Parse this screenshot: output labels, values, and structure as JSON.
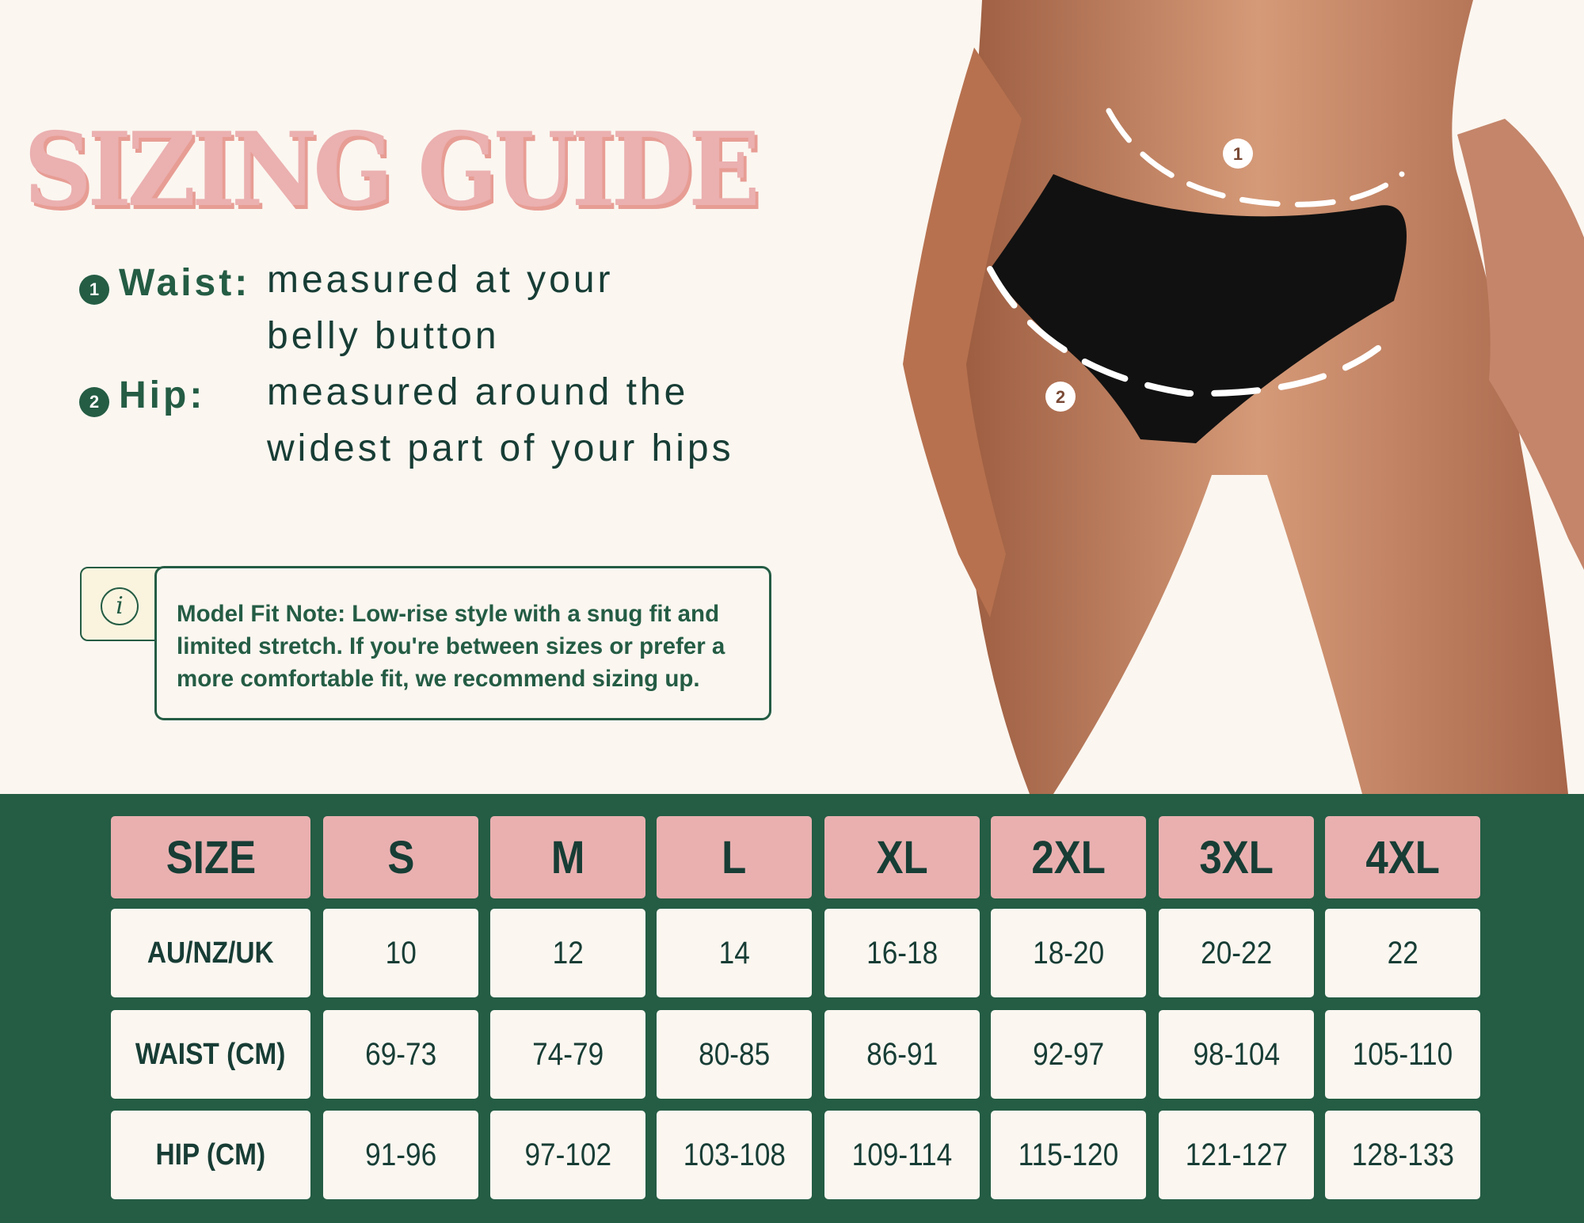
{
  "title": "SIZING GUIDE",
  "measurements": [
    {
      "number": "1",
      "label": "Waist:",
      "lines": [
        "measured at your",
        "belly button"
      ]
    },
    {
      "number": "2",
      "label": "Hip:",
      "lines": [
        "measured around the",
        "widest part of your hips"
      ]
    }
  ],
  "note": {
    "icon": "info-icon",
    "text": "Model Fit Note: Low-rise style with a snug fit and limited stretch. If you're between sizes or prefer a more comfortable fit, we recommend sizing up."
  },
  "photo_markers": [
    "1",
    "2"
  ],
  "colors": {
    "background": "#fbf6f0",
    "green": "#245c44",
    "pink": "#eab0b0",
    "text_dark": "#173d35"
  },
  "table": {
    "headers": [
      "SIZE",
      "S",
      "M",
      "L",
      "XL",
      "2XL",
      "3XL",
      "4XL"
    ],
    "rows": [
      {
        "label": "AU/NZ/UK",
        "values": [
          "10",
          "12",
          "14",
          "16-18",
          "18-20",
          "20-22",
          "22"
        ]
      },
      {
        "label": "WAIST (CM)",
        "values": [
          "69-73",
          "74-79",
          "80-85",
          "86-91",
          "92-97",
          "98-104",
          "105-110"
        ]
      },
      {
        "label": "HIP (CM)",
        "values": [
          "91-96",
          "97-102",
          "103-108",
          "109-114",
          "115-120",
          "121-127",
          "128-133"
        ]
      }
    ]
  }
}
